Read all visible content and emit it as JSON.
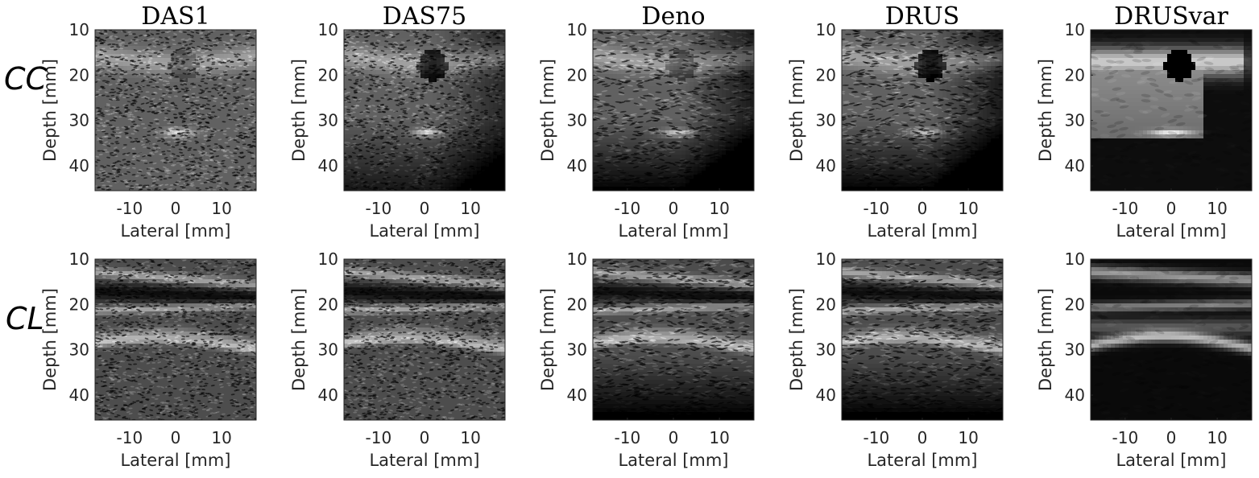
{
  "figure": {
    "columns": [
      {
        "title": "DAS1",
        "style": "speckle-raw",
        "cyst_strength": 0.35,
        "smooth": 0
      },
      {
        "title": "DAS75",
        "style": "speckle-compounded",
        "cyst_strength": 0.85,
        "smooth": 0
      },
      {
        "title": "Deno",
        "style": "despeckled-denoised",
        "cyst_strength": 0.45,
        "smooth": 0.4
      },
      {
        "title": "DRUS",
        "style": "despeckled",
        "cyst_strength": 0.9,
        "smooth": 0.3
      },
      {
        "title": "DRUSvar",
        "style": "smooth-variance",
        "cyst_strength": 1.0,
        "smooth": 1.0
      }
    ],
    "rows": [
      {
        "label": "CC",
        "content": "carotid-cross-section-with-dark-cyst"
      },
      {
        "label": "CL",
        "content": "carotid-longitudinal-with-layered-bands"
      }
    ],
    "axes": {
      "xlabel": "Lateral [mm]",
      "ylabel": "Depth [mm]",
      "xticks": [
        "-10",
        "0",
        "10"
      ],
      "yticks": [
        "10",
        "20",
        "30",
        "40"
      ],
      "xlim": [
        -17.5,
        17.5
      ],
      "ylim": [
        10,
        45.5
      ]
    },
    "colors": {
      "background": "#ffffff",
      "image_dark": "#000000",
      "image_bright": "#ffffff",
      "text": "#262626"
    }
  }
}
